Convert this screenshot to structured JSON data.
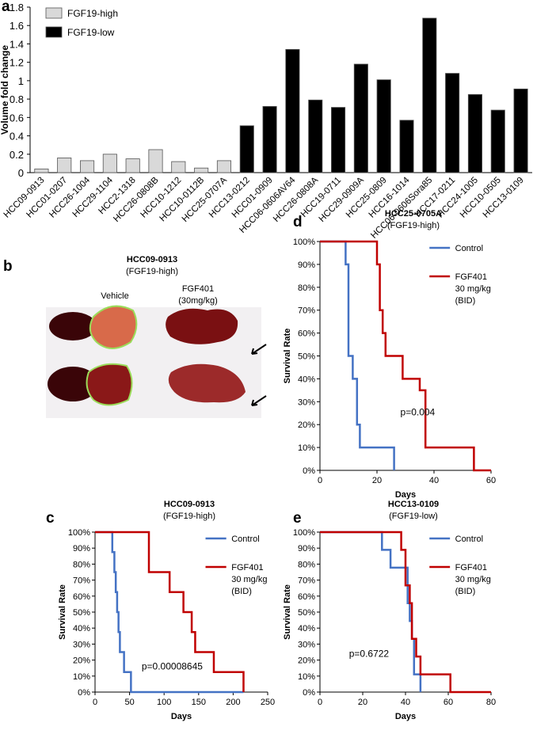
{
  "chart_data": [
    {
      "type": "bar",
      "label": "a",
      "y_label": "Volume fold change",
      "categories": [
        "HCC09-0913",
        "HCC01-0207",
        "HCC26-1004",
        "HCC29-1104",
        "HCC2-1318",
        "HCC26-0808B",
        "HCC10-1212",
        "HCC10-0112B",
        "HCC25-0707A",
        "HCC13-0212",
        "HCC01-0909",
        "HCC06-0606AV64",
        "HCC26-0808A",
        "HCC19-0711",
        "HCC29-0909A",
        "HCC25-0809",
        "HCC16-1014",
        "HCC06-0606Sora85",
        "HCC17-0211",
        "HCC24-1005",
        "HCC10-0505",
        "HCC13-0109"
      ],
      "series": [
        {
          "name": "FGF19-high",
          "color": "#d9d9d9",
          "values": [
            0.04,
            0.16,
            0.13,
            0.2,
            0.15,
            0.25,
            0.12,
            0.05,
            0.13,
            null,
            null,
            null,
            null,
            null,
            null,
            null,
            null,
            null,
            null,
            null,
            null,
            null
          ]
        },
        {
          "name": "FGF19-low",
          "color": "#000000",
          "values": [
            null,
            null,
            null,
            null,
            null,
            null,
            null,
            null,
            null,
            0.51,
            0.72,
            1.34,
            0.79,
            0.71,
            1.18,
            1.01,
            0.57,
            1.68,
            1.08,
            0.85,
            0.68,
            0.91
          ]
        }
      ],
      "ylim": [
        0,
        1.8
      ],
      "yticks": [
        0,
        0.2,
        0.4,
        0.6,
        0.8,
        1,
        1.2,
        1.4,
        1.6,
        1.8
      ],
      "legend": "upper left"
    },
    {
      "type": "step",
      "label": "c",
      "title": "HCC09-0913",
      "subtitle": "(FGF19-high)",
      "x_label": "Days",
      "y_label": "Survival Rate",
      "annotation": "p=0.00008645",
      "series": [
        {
          "name": "Control",
          "color": "#4472c4",
          "x": [
            0,
            25,
            28,
            30,
            32,
            34,
            36,
            42,
            52,
            215
          ],
          "values": [
            100,
            87.5,
            75,
            62.5,
            50,
            37.5,
            25,
            12.5,
            0,
            0
          ]
        },
        {
          "name": "FGF401\n30 mg/kg\n(BID)",
          "color": "#c00000",
          "x": [
            0,
            78,
            108,
            128,
            140,
            145,
            172,
            215
          ],
          "values": [
            100,
            75,
            62.5,
            50,
            37.5,
            25,
            12.5,
            0
          ]
        }
      ],
      "xlim": [
        0,
        250
      ],
      "xticks": [
        0,
        50,
        100,
        150,
        200,
        250
      ],
      "ylim": [
        0,
        100
      ],
      "yticks": [
        {
          "value": 0,
          "label": "0%"
        },
        {
          "value": 10,
          "label": "10%"
        },
        {
          "value": 20,
          "label": "20%"
        },
        {
          "value": 30,
          "label": "30%"
        },
        {
          "value": 40,
          "label": "40%"
        },
        {
          "value": 50,
          "label": "50%"
        },
        {
          "value": 60,
          "label": "60%"
        },
        {
          "value": 70,
          "label": "70%"
        },
        {
          "value": 80,
          "label": "80%"
        },
        {
          "value": 90,
          "label": "90%"
        },
        {
          "value": 100,
          "label": "100%"
        }
      ]
    },
    {
      "type": "step",
      "label": "d",
      "title": "HCC25-0705A",
      "subtitle": "(FGF19-high)",
      "x_label": "Days",
      "y_label": "Survival Rate",
      "annotation": "p=0.004",
      "series": [
        {
          "name": "Control",
          "color": "#4472c4",
          "x": [
            0,
            9,
            10,
            11.5,
            13,
            14,
            26
          ],
          "values": [
            100,
            90,
            50,
            40,
            20,
            10,
            0
          ]
        },
        {
          "name": "FGF401\n30 mg/kg\n(BID)",
          "color": "#c00000",
          "x": [
            0,
            20,
            21,
            22,
            23,
            29,
            35,
            37,
            54,
            60
          ],
          "values": [
            100,
            90,
            70,
            60,
            50,
            40,
            35,
            10,
            0,
            0
          ]
        }
      ],
      "xlim": [
        0,
        60
      ],
      "xticks": [
        0,
        20,
        40,
        60
      ],
      "ylim": [
        0,
        100
      ],
      "yticks": [
        {
          "value": 0,
          "label": "0%"
        },
        {
          "value": 10,
          "label": "10%"
        },
        {
          "value": 20,
          "label": "20%"
        },
        {
          "value": 30,
          "label": "30%"
        },
        {
          "value": 40,
          "label": "40%"
        },
        {
          "value": 50,
          "label": "50%"
        },
        {
          "value": 60,
          "label": "60%"
        },
        {
          "value": 70,
          "label": "70%"
        },
        {
          "value": 80,
          "label": "80%"
        },
        {
          "value": 90,
          "label": "90%"
        },
        {
          "value": 100,
          "label": "100%"
        }
      ]
    },
    {
      "type": "step",
      "label": "e",
      "title": "HCC13-0109",
      "subtitle": "(FGF19-low)",
      "x_label": "Days",
      "y_label": "Survival Rate",
      "annotation": "p=0.6722",
      "series": [
        {
          "name": "Control",
          "color": "#4472c4",
          "x": [
            0,
            29,
            33,
            41,
            42,
            43,
            44,
            47
          ],
          "values": [
            100,
            88.9,
            77.8,
            55.6,
            44.4,
            33.3,
            11.1,
            0
          ]
        },
        {
          "name": "FGF401\n30 mg/kg\n(BID)",
          "color": "#c00000",
          "x": [
            0,
            38,
            40,
            42,
            43,
            45,
            47,
            61,
            80
          ],
          "values": [
            100,
            88.9,
            66.7,
            55.6,
            33.3,
            22.2,
            11.1,
            0,
            0
          ]
        }
      ],
      "xlim": [
        0,
        80
      ],
      "xticks": [
        0,
        20,
        40,
        60,
        80
      ],
      "ylim": [
        0,
        100
      ],
      "yticks": [
        {
          "value": 0,
          "label": "0%"
        },
        {
          "value": 10,
          "label": "10%"
        },
        {
          "value": 20,
          "label": "20%"
        },
        {
          "value": 30,
          "label": "30%"
        },
        {
          "value": 40,
          "label": "40%"
        },
        {
          "value": 50,
          "label": "50%"
        },
        {
          "value": 60,
          "label": "60%"
        },
        {
          "value": 70,
          "label": "70%"
        },
        {
          "value": 80,
          "label": "80%"
        },
        {
          "value": 90,
          "label": "90%"
        },
        {
          "value": 100,
          "label": "100%"
        }
      ]
    }
  ],
  "photo_panel": {
    "label": "b",
    "title": "HCC09-0913",
    "subtitle": "(FGF19-high)",
    "left_label": "Vehicle",
    "right_label": "FGF401",
    "right_sublabel": "(30mg/kg)"
  }
}
